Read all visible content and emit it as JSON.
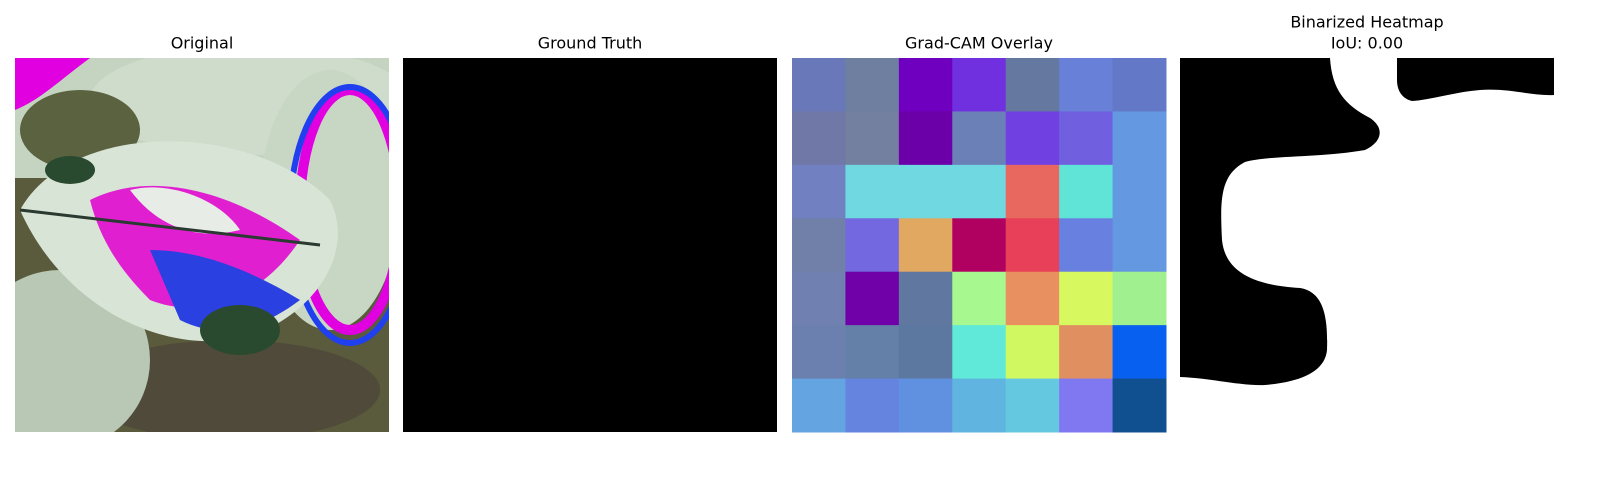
{
  "panels": [
    {
      "title_lines": [
        "Original"
      ]
    },
    {
      "title_lines": [
        "Ground Truth"
      ]
    },
    {
      "title_lines": [
        "Grad-CAM Overlay"
      ]
    },
    {
      "title_lines": [
        "Binarized Heatmap",
        "IoU: 0.00"
      ]
    }
  ]
}
